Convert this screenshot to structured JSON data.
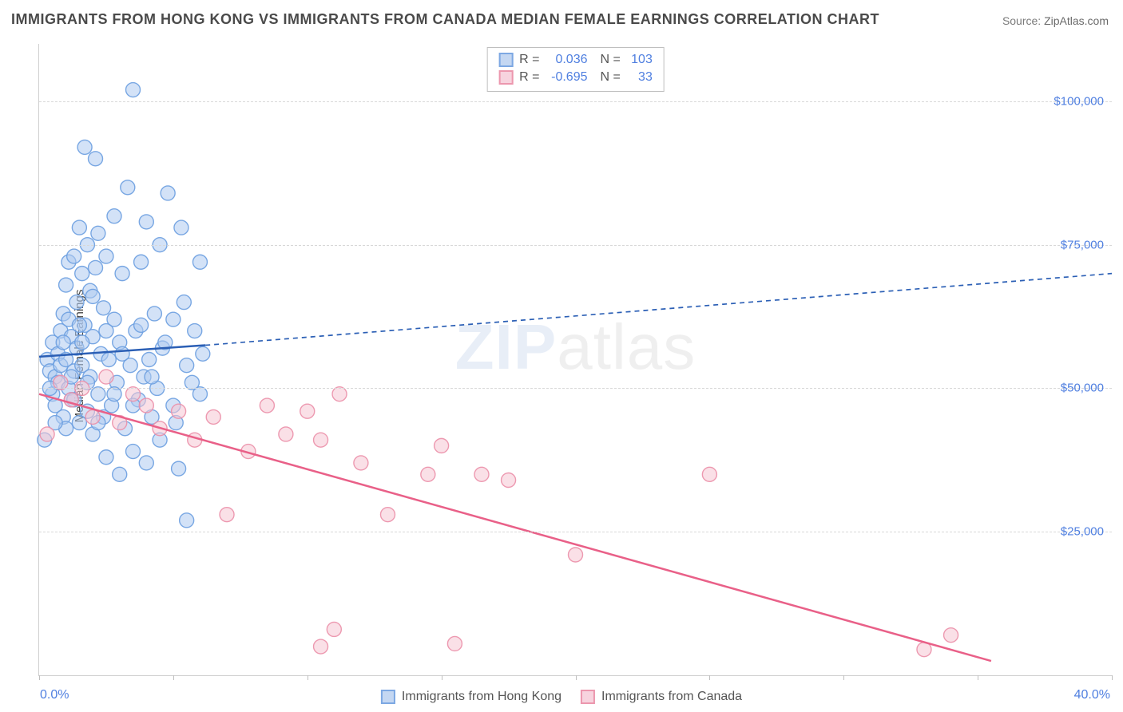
{
  "title": "IMMIGRANTS FROM HONG KONG VS IMMIGRANTS FROM CANADA MEDIAN FEMALE EARNINGS CORRELATION CHART",
  "source_label": "Source:",
  "source_value": "ZipAtlas.com",
  "ylabel": "Median Female Earnings",
  "watermark_a": "ZIP",
  "watermark_b": "atlas",
  "chart": {
    "type": "scatter",
    "background_color": "#ffffff",
    "grid_color": "#d8d8d8",
    "axis_color": "#cfcfcf",
    "tick_label_color": "#4f7fe0",
    "tick_fontsize": 15,
    "title_fontsize": 18,
    "title_color": "#4a4a4a",
    "xlim": [
      0,
      40
    ],
    "ylim": [
      0,
      110000
    ],
    "xticks": [
      0,
      5,
      10,
      15,
      20,
      25,
      30,
      35,
      40
    ],
    "xtick_labels": {
      "0": "0.0%",
      "40": "40.0%"
    },
    "yticks": [
      25000,
      50000,
      75000,
      100000
    ],
    "ytick_labels": [
      "$25,000",
      "$50,000",
      "$75,000",
      "$100,000"
    ],
    "marker_radius": 9,
    "marker_opacity": 0.55,
    "marker_stroke_opacity": 0.9,
    "series": [
      {
        "name": "Immigrants from Hong Kong",
        "color_fill": "#aecaf0",
        "color_stroke": "#6c9ee0",
        "swatch_fill": "#c4d7f2",
        "swatch_border": "#7da8e3",
        "r_label": "R =",
        "r_value": "0.036",
        "n_label": "N =",
        "n_value": "103",
        "trend": {
          "solid": {
            "x1": 0,
            "y1": 55500,
            "x2": 6.2,
            "y2": 57500
          },
          "dashed": {
            "x1": 6.2,
            "y1": 57500,
            "x2": 40,
            "y2": 70000
          },
          "color": "#2b5fb5",
          "width": 2.5,
          "dash": "6,5"
        },
        "data": [
          [
            0.2,
            41000
          ],
          [
            0.3,
            55000
          ],
          [
            0.4,
            53000
          ],
          [
            0.5,
            49000
          ],
          [
            0.5,
            58000
          ],
          [
            0.6,
            47000
          ],
          [
            0.6,
            52000
          ],
          [
            0.7,
            51000
          ],
          [
            0.7,
            56000
          ],
          [
            0.8,
            54000
          ],
          [
            0.8,
            60000
          ],
          [
            0.9,
            45000
          ],
          [
            0.9,
            63000
          ],
          [
            1.0,
            55000
          ],
          [
            1.0,
            68000
          ],
          [
            1.1,
            50000
          ],
          [
            1.1,
            72000
          ],
          [
            1.2,
            48000
          ],
          [
            1.2,
            59000
          ],
          [
            1.3,
            53000
          ],
          [
            1.3,
            73000
          ],
          [
            1.4,
            57000
          ],
          [
            1.4,
            65000
          ],
          [
            1.5,
            44000
          ],
          [
            1.5,
            78000
          ],
          [
            1.6,
            54000
          ],
          [
            1.6,
            70000
          ],
          [
            1.7,
            61000
          ],
          [
            1.7,
            92000
          ],
          [
            1.8,
            46000
          ],
          [
            1.8,
            75000
          ],
          [
            1.9,
            52000
          ],
          [
            1.9,
            67000
          ],
          [
            2.0,
            42000
          ],
          [
            2.0,
            59000
          ],
          [
            2.1,
            71000
          ],
          [
            2.1,
            90000
          ],
          [
            2.2,
            49000
          ],
          [
            2.2,
            77000
          ],
          [
            2.3,
            56000
          ],
          [
            2.4,
            45000
          ],
          [
            2.4,
            64000
          ],
          [
            2.5,
            38000
          ],
          [
            2.5,
            73000
          ],
          [
            2.6,
            55000
          ],
          [
            2.7,
            47000
          ],
          [
            2.8,
            62000
          ],
          [
            2.8,
            80000
          ],
          [
            2.9,
            51000
          ],
          [
            3.0,
            35000
          ],
          [
            3.0,
            58000
          ],
          [
            3.1,
            70000
          ],
          [
            3.2,
            43000
          ],
          [
            3.3,
            85000
          ],
          [
            3.4,
            54000
          ],
          [
            3.5,
            39000
          ],
          [
            3.5,
            102000
          ],
          [
            3.6,
            60000
          ],
          [
            3.7,
            48000
          ],
          [
            3.8,
            72000
          ],
          [
            3.9,
            52000
          ],
          [
            4.0,
            37000
          ],
          [
            4.0,
            79000
          ],
          [
            4.1,
            55000
          ],
          [
            4.2,
            45000
          ],
          [
            4.3,
            63000
          ],
          [
            4.4,
            50000
          ],
          [
            4.5,
            41000
          ],
          [
            4.5,
            75000
          ],
          [
            4.6,
            57000
          ],
          [
            4.8,
            84000
          ],
          [
            5.0,
            47000
          ],
          [
            5.0,
            62000
          ],
          [
            5.2,
            36000
          ],
          [
            5.3,
            78000
          ],
          [
            5.5,
            54000
          ],
          [
            5.5,
            27000
          ],
          [
            5.8,
            60000
          ],
          [
            6.0,
            49000
          ],
          [
            6.0,
            72000
          ],
          [
            1.0,
            43000
          ],
          [
            1.1,
            62000
          ],
          [
            1.3,
            48000
          ],
          [
            1.6,
            58000
          ],
          [
            1.8,
            51000
          ],
          [
            2.0,
            66000
          ],
          [
            2.2,
            44000
          ],
          [
            2.5,
            60000
          ],
          [
            2.8,
            49000
          ],
          [
            3.1,
            56000
          ],
          [
            3.5,
            47000
          ],
          [
            3.8,
            61000
          ],
          [
            4.2,
            52000
          ],
          [
            4.7,
            58000
          ],
          [
            5.1,
            44000
          ],
          [
            5.4,
            65000
          ],
          [
            5.7,
            51000
          ],
          [
            6.1,
            56000
          ],
          [
            0.4,
            50000
          ],
          [
            0.6,
            44000
          ],
          [
            0.9,
            58000
          ],
          [
            1.2,
            52000
          ],
          [
            1.5,
            61000
          ]
        ]
      },
      {
        "name": "Immigrants from Canada",
        "color_fill": "#f6c7d4",
        "color_stroke": "#eb8fa8",
        "swatch_fill": "#f7d3de",
        "swatch_border": "#ec97ae",
        "r_label": "R =",
        "r_value": "-0.695",
        "n_label": "N =",
        "n_value": "33",
        "trend": {
          "solid": {
            "x1": 0,
            "y1": 49000,
            "x2": 35.5,
            "y2": 2500
          },
          "color": "#e96088",
          "width": 2.5
        },
        "data": [
          [
            0.3,
            42000
          ],
          [
            0.8,
            51000
          ],
          [
            1.2,
            48000
          ],
          [
            1.6,
            50000
          ],
          [
            2.0,
            45000
          ],
          [
            2.5,
            52000
          ],
          [
            3.0,
            44000
          ],
          [
            3.5,
            49000
          ],
          [
            4.0,
            47000
          ],
          [
            4.5,
            43000
          ],
          [
            5.2,
            46000
          ],
          [
            5.8,
            41000
          ],
          [
            6.5,
            45000
          ],
          [
            7.0,
            28000
          ],
          [
            7.8,
            39000
          ],
          [
            8.5,
            47000
          ],
          [
            9.2,
            42000
          ],
          [
            10.0,
            46000
          ],
          [
            10.5,
            41000
          ],
          [
            11.2,
            49000
          ],
          [
            12.0,
            37000
          ],
          [
            13.0,
            28000
          ],
          [
            14.5,
            35000
          ],
          [
            15.0,
            40000
          ],
          [
            16.5,
            35000
          ],
          [
            17.5,
            34000
          ],
          [
            20.0,
            21000
          ],
          [
            25.0,
            35000
          ],
          [
            10.5,
            5000
          ],
          [
            11.0,
            8000
          ],
          [
            15.5,
            5500
          ],
          [
            33.0,
            4500
          ],
          [
            34.0,
            7000
          ]
        ]
      }
    ]
  },
  "legend_bottom": [
    {
      "label": "Immigrants from Hong Kong",
      "fill": "#c4d7f2",
      "border": "#7da8e3"
    },
    {
      "label": "Immigrants from Canada",
      "fill": "#f7d3de",
      "border": "#ec97ae"
    }
  ]
}
